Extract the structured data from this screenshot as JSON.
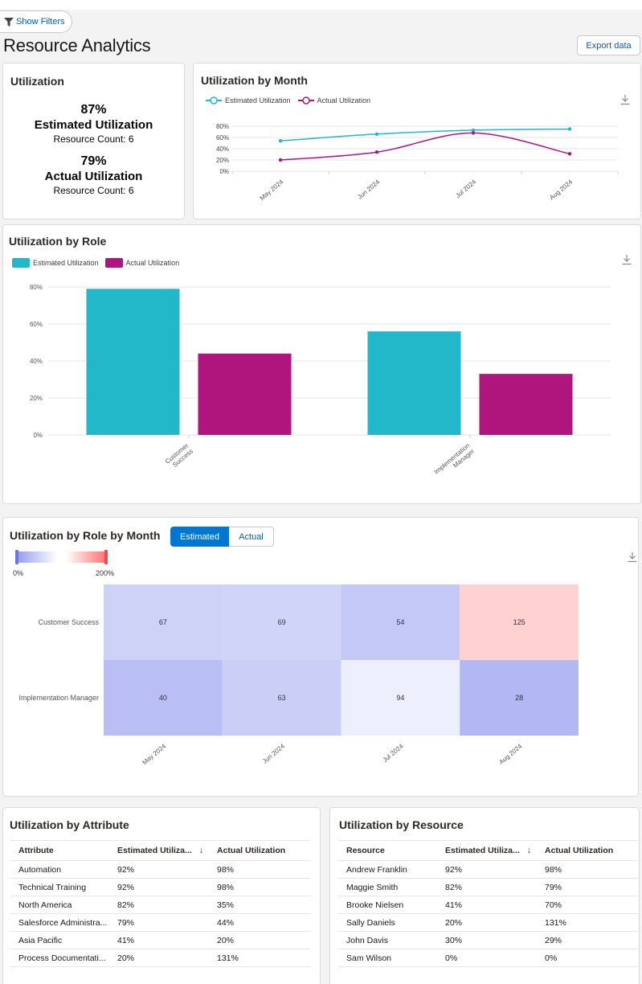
{
  "header": {
    "filters_label": "Show Filters",
    "title": "Resource Analytics",
    "export_label": "Export data"
  },
  "kpi_card": {
    "title": "Utilization",
    "estimated": {
      "pct": "87%",
      "label": "Estimated Utilization",
      "count": "Resource Count: 6"
    },
    "actual": {
      "pct": "79%",
      "label": "Actual Utilization",
      "count": "Resource Count: 6"
    }
  },
  "colors": {
    "estimated": "#22b8c9",
    "actual": "#b0157e",
    "accent": "#0176d3"
  },
  "month_chart": {
    "title": "Utilization by Month",
    "legend": [
      "Estimated Utilization",
      "Actual Utilization"
    ],
    "chart_data": {
      "type": "line",
      "x": [
        "May 2024",
        "Jun 2024",
        "Jul 2024",
        "Aug 2024"
      ],
      "series": [
        {
          "name": "Estimated Utilization",
          "values": [
            54,
            66,
            73,
            75
          ]
        },
        {
          "name": "Actual Utilization",
          "values": [
            20,
            34,
            68,
            31
          ]
        }
      ],
      "yticks": [
        "80%",
        "60%",
        "40%",
        "20%",
        "0%"
      ],
      "ylim": [
        0,
        80
      ]
    }
  },
  "role_chart": {
    "title": "Utilization by Role",
    "legend": [
      "Estimated Utilization",
      "Actual Utilization"
    ],
    "chart_data": {
      "type": "bar",
      "categories": [
        "Customer Success",
        "Implementation Manager"
      ],
      "category_lines": [
        [
          "Customer",
          "Success"
        ],
        [
          "Implementation",
          "Manager"
        ]
      ],
      "series": [
        {
          "name": "Estimated Utilization",
          "values": [
            79,
            56
          ]
        },
        {
          "name": "Actual Utilization",
          "values": [
            44,
            33
          ]
        }
      ],
      "yticks": [
        "80%",
        "60%",
        "40%",
        "20%",
        "0%"
      ],
      "ylim": [
        0,
        80
      ]
    }
  },
  "heatmap": {
    "title": "Utilization by Role by Month",
    "toggle": {
      "estimated": "Estimated",
      "actual": "Actual"
    },
    "scale_min": "0%",
    "scale_max": "200%",
    "chart_data": {
      "type": "heatmap",
      "rows": [
        "Customer Success",
        "Implementation Manager"
      ],
      "columns": [
        "May 2024",
        "Jun 2024",
        "Jul 2024",
        "Aug 2024"
      ],
      "values": [
        [
          67,
          69,
          54,
          125
        ],
        [
          40,
          63,
          94,
          28
        ]
      ],
      "range": [
        0,
        200
      ]
    }
  },
  "attr_table": {
    "title": "Utilization by Attribute",
    "columns": [
      "Attribute",
      "Estimated Utiliza...",
      "Actual Utilization"
    ],
    "sort_icon": "↓",
    "rows": [
      [
        "Automation",
        "92%",
        "98%"
      ],
      [
        "Technical Training",
        "92%",
        "98%"
      ],
      [
        "North America",
        "82%",
        "35%"
      ],
      [
        "Salesforce Administra...",
        "79%",
        "44%"
      ],
      [
        "Asia Pacific",
        "41%",
        "20%"
      ],
      [
        "Process Documentati...",
        "20%",
        "131%"
      ]
    ]
  },
  "res_table": {
    "title": "Utilization by Resource",
    "columns": [
      "Resource",
      "Estimated Utiliza...",
      "Actual Utilization"
    ],
    "sort_icon": "↓",
    "rows": [
      [
        "Andrew Franklin",
        "92%",
        "98%"
      ],
      [
        "Maggie Smith",
        "82%",
        "79%"
      ],
      [
        "Brooke Nielsen",
        "41%",
        "70%"
      ],
      [
        "Sally Daniels",
        "20%",
        "131%"
      ],
      [
        "John Davis",
        "30%",
        "29%"
      ],
      [
        "Sam Wilson",
        "0%",
        "0%"
      ]
    ]
  }
}
